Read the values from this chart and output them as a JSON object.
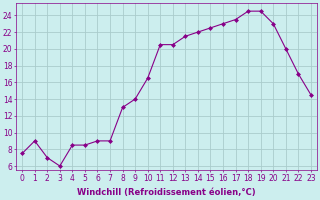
{
  "x": [
    0,
    1,
    2,
    3,
    4,
    5,
    6,
    7,
    8,
    9,
    10,
    11,
    12,
    13,
    14,
    15,
    16,
    17,
    18,
    19,
    20,
    21,
    22,
    23
  ],
  "y": [
    7.5,
    9.0,
    7.0,
    6.0,
    8.5,
    8.5,
    9.0,
    9.0,
    13.0,
    14.0,
    16.5,
    20.5,
    20.5,
    21.5,
    22.0,
    22.5,
    23.0,
    23.5,
    24.5,
    24.5,
    23.0,
    20.0,
    17.0,
    14.5
  ],
  "line_color": "#880088",
  "marker": "D",
  "marker_size": 2.0,
  "bg_color": "#cceeee",
  "grid_color": "#aacccc",
  "xlabel": "Windchill (Refroidissement éolien,°C)",
  "ylabel_ticks": [
    6,
    8,
    10,
    12,
    14,
    16,
    18,
    20,
    22,
    24
  ],
  "ylim": [
    5.5,
    25.5
  ],
  "xlim": [
    -0.5,
    23.5
  ],
  "tick_color": "#880088",
  "xlabel_color": "#880088",
  "tick_fontsize": 5.5,
  "xlabel_fontsize": 6.0
}
